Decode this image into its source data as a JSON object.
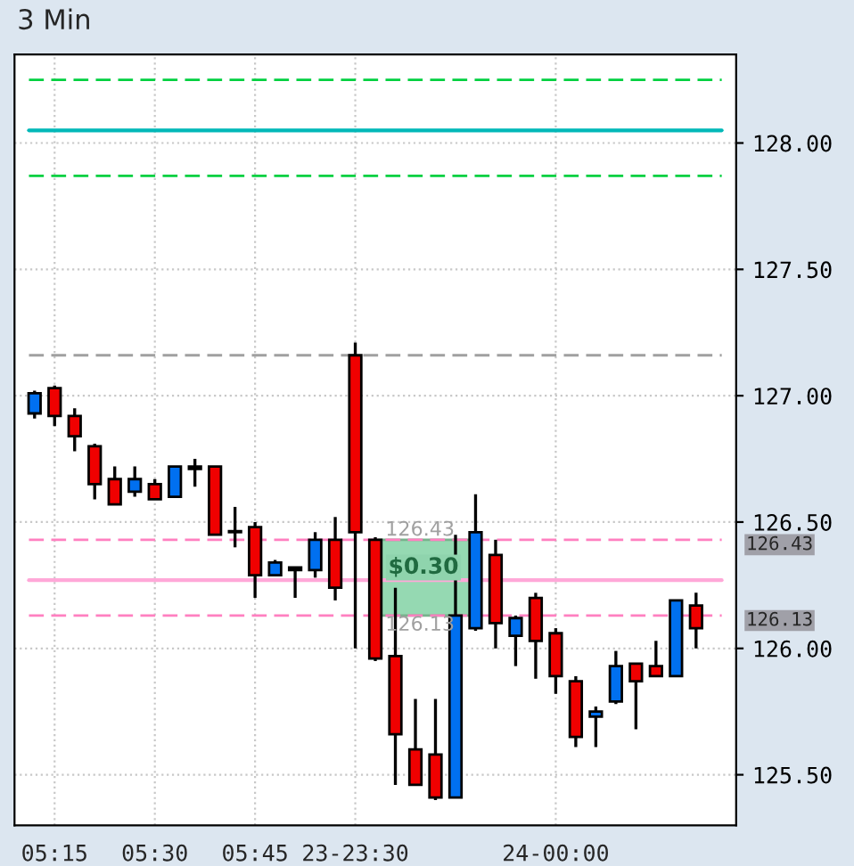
{
  "chart_data": {
    "type": "candlestick",
    "title": "3 Min",
    "categories": [
      null,
      "05:15",
      null,
      null,
      null,
      null,
      "05:30",
      null,
      null,
      null,
      null,
      "05:45",
      null,
      null,
      null,
      null,
      "23-23:30",
      null,
      null,
      null,
      null,
      null,
      null,
      null,
      null,
      null,
      "24-00:00",
      null,
      null,
      null,
      null,
      null,
      null,
      null
    ],
    "ohlc": [
      [
        126.93,
        127.02,
        126.91,
        127.01
      ],
      [
        127.03,
        127.04,
        126.88,
        126.92
      ],
      [
        126.92,
        126.95,
        126.78,
        126.84
      ],
      [
        126.8,
        126.81,
        126.59,
        126.65
      ],
      [
        126.67,
        126.72,
        126.57,
        126.57
      ],
      [
        126.62,
        126.72,
        126.6,
        126.67
      ],
      [
        126.65,
        126.67,
        126.59,
        126.59
      ],
      [
        126.6,
        126.72,
        126.6,
        126.72
      ],
      [
        126.71,
        126.75,
        126.64,
        126.72
      ],
      [
        126.72,
        126.72,
        126.45,
        126.45
      ],
      [
        126.46,
        126.56,
        126.4,
        126.46
      ],
      [
        126.48,
        126.5,
        126.2,
        126.29
      ],
      [
        126.29,
        126.35,
        126.29,
        126.34
      ],
      [
        126.32,
        126.32,
        126.2,
        126.31
      ],
      [
        126.31,
        126.46,
        126.28,
        126.43
      ],
      [
        126.43,
        126.52,
        126.19,
        126.24
      ],
      [
        127.16,
        127.21,
        126.0,
        126.46
      ],
      [
        126.43,
        126.44,
        125.95,
        125.96
      ],
      [
        125.97,
        126.24,
        125.46,
        125.66
      ],
      [
        125.6,
        125.8,
        125.46,
        125.46
      ],
      [
        125.58,
        125.8,
        125.4,
        125.41
      ],
      [
        125.41,
        126.45,
        125.41,
        126.13
      ],
      [
        126.08,
        126.61,
        126.07,
        126.46
      ],
      [
        126.37,
        126.43,
        126.0,
        126.1
      ],
      [
        126.05,
        126.13,
        125.93,
        126.12
      ],
      [
        126.2,
        126.22,
        125.88,
        126.03
      ],
      [
        126.06,
        126.08,
        125.82,
        125.89
      ],
      [
        125.87,
        125.89,
        125.61,
        125.65
      ],
      [
        125.73,
        125.77,
        125.61,
        125.75
      ],
      [
        125.79,
        125.99,
        125.78,
        125.93
      ],
      [
        125.94,
        125.94,
        125.68,
        125.87
      ],
      [
        125.93,
        126.03,
        125.89,
        125.89
      ],
      [
        125.89,
        126.19,
        125.89,
        126.19
      ],
      [
        126.17,
        126.22,
        126.0,
        126.08
      ]
    ],
    "colors": [
      "#0070f0",
      "#f00000",
      "#f00000",
      "#f00000",
      "#f00000",
      "#0070f0",
      "#f00000",
      "#0070f0",
      "#0070f0",
      "#f00000",
      "#f00000",
      "#f00000",
      "#0070f0",
      "#f00000",
      "#0070f0",
      "#f00000",
      "#f00000",
      "#f00000",
      "#f00000",
      "#f00000",
      "#f00000",
      "#0070f0",
      "#0070f0",
      "#f00000",
      "#0070f0",
      "#f00000",
      "#f00000",
      "#f00000",
      "#0070f0",
      "#0070f0",
      "#f00000",
      "#f00000",
      "#0070f0",
      "#f00000"
    ],
    "ylim": [
      125.3,
      128.35
    ],
    "yticks": [
      {
        "value": 125.5,
        "label": "125.50"
      },
      {
        "value": 126.0,
        "label": "126.00"
      },
      {
        "value": 126.5,
        "label": "126.50"
      },
      {
        "value": 127.0,
        "label": "127.00"
      },
      {
        "value": 127.5,
        "label": "127.50"
      },
      {
        "value": 128.0,
        "label": "128.00"
      }
    ],
    "ref_lines": [
      {
        "axis": "y",
        "value": 128.25,
        "color": "#00d040",
        "line_style": "dashed"
      },
      {
        "axis": "y",
        "value": 128.05,
        "color": "#00b8b8",
        "line_style": "solid"
      },
      {
        "axis": "y",
        "value": 127.87,
        "color": "#00d040",
        "line_style": "dashed"
      },
      {
        "axis": "y",
        "value": 127.16,
        "color": "#a0a0a0",
        "line_style": "dashed"
      },
      {
        "axis": "y",
        "value": 126.43,
        "label": "126.43",
        "color": "#ff80c0",
        "line_style": "dashed"
      },
      {
        "axis": "y",
        "value": 126.27,
        "color": "#ffa8d8",
        "line_style": "solid"
      },
      {
        "axis": "y",
        "value": 126.13,
        "label": "126.13",
        "color": "#ff80c0",
        "line_style": "dashed"
      }
    ],
    "annotations": [
      {
        "text": "126.43",
        "y": 126.43
      },
      "$0.30",
      {
        "text": "126.13",
        "y": 126.13
      }
    ],
    "grid": true
  }
}
